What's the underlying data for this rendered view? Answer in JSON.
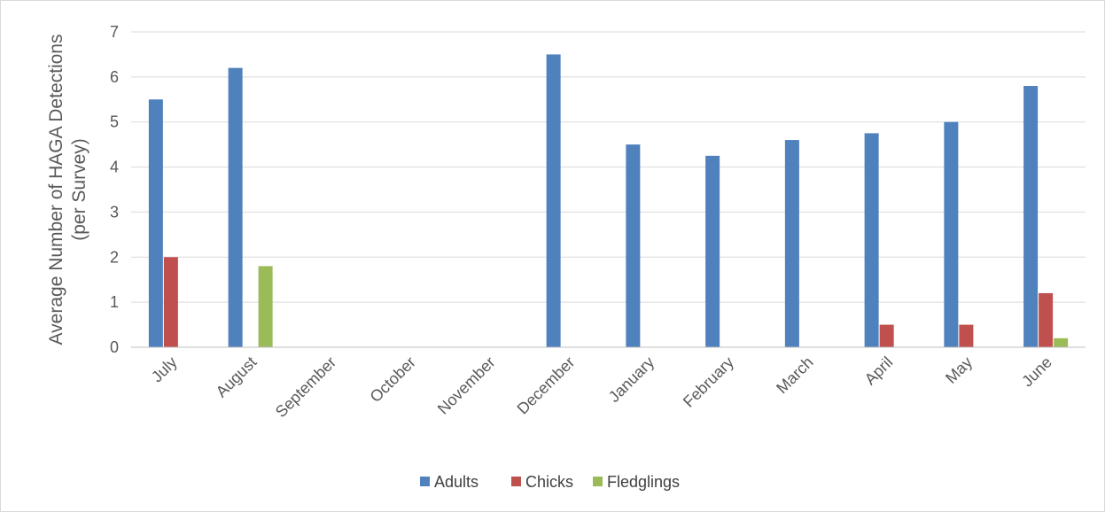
{
  "chart_data": {
    "type": "bar",
    "title": "",
    "xlabel": "",
    "ylabel_line1": "Average Number of HAGA Detections",
    "ylabel_line2": "(per Survey)",
    "ylim": [
      0,
      7
    ],
    "yticks": [
      "0",
      "1",
      "2",
      "3",
      "4",
      "5",
      "6",
      "7"
    ],
    "grid": true,
    "legend_position": "bottom",
    "categories": [
      "July",
      "August",
      "September",
      "October",
      "November",
      "December",
      "January",
      "February",
      "March",
      "April",
      "May",
      "June"
    ],
    "series": [
      {
        "name": "Adults",
        "color": "#4f81bd",
        "values": [
          5.5,
          6.2,
          0,
          0,
          0,
          6.5,
          4.5,
          4.25,
          4.6,
          4.75,
          5.0,
          5.8
        ]
      },
      {
        "name": "Chicks",
        "color": "#c0504d",
        "values": [
          2.0,
          0,
          0,
          0,
          0,
          0,
          0,
          0,
          0,
          0.5,
          0.5,
          1.2
        ]
      },
      {
        "name": "Fledglings",
        "color": "#9bbb59",
        "values": [
          0,
          1.8,
          0,
          0,
          0,
          0,
          0,
          0,
          0,
          0,
          0,
          0.2
        ]
      }
    ]
  }
}
